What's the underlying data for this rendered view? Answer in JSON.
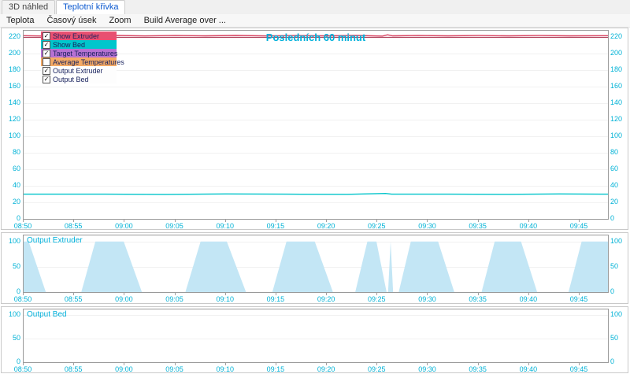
{
  "tabs": [
    {
      "label": "3D náhled",
      "active": false
    },
    {
      "label": "Teplotní křivka",
      "active": true
    }
  ],
  "menu": [
    "Teplota",
    "Časový úsek",
    "Zoom",
    "Build Average over ..."
  ],
  "legend": {
    "items": [
      {
        "label": "Show Extruder",
        "checked": true,
        "bg": "#e85071"
      },
      {
        "label": "Show Bed",
        "checked": true,
        "bg": "#00c6cc"
      },
      {
        "label": "Target Temperatures",
        "checked": true,
        "bg": "#b671d2"
      },
      {
        "label": "Average Temperatures",
        "checked": false,
        "bg": "#f4aa66"
      },
      {
        "label": "Output Extruder",
        "checked": true,
        "bg": "#fdfdfd"
      },
      {
        "label": "Output Bed",
        "checked": true,
        "bg": "#fdfdfd"
      }
    ]
  },
  "colors": {
    "axis_label": "#00b2d6",
    "title": "#00b0da",
    "extruder_line": "#d84563",
    "target_line": "#a62c48",
    "bed_line": "#00c4ca",
    "output_fill": "#c3e6f5",
    "active_tab_text": "#0a58cf"
  },
  "chart_data": [
    {
      "id": "main",
      "type": "line",
      "title": "Posledních 60 minut",
      "x_tick_labels": [
        "08:50",
        "08:55",
        "09:00",
        "09:05",
        "09:10",
        "09:15",
        "09:20",
        "09:25",
        "09:30",
        "09:35",
        "09:40",
        "09:45"
      ],
      "x_tick_minutes": [
        0,
        5,
        10,
        15,
        20,
        25,
        30,
        35,
        40,
        45,
        50,
        55
      ],
      "x_range": [
        0,
        57.8
      ],
      "y_ticks": [
        0,
        20,
        40,
        60,
        80,
        100,
        120,
        140,
        160,
        180,
        200,
        220
      ],
      "y_range": [
        0,
        228
      ],
      "series": [
        {
          "name": "Target Temperatures",
          "color": "#a62c48",
          "width": 1,
          "points": [
            [
              0,
              220
            ],
            [
              57.8,
              220
            ]
          ]
        },
        {
          "name": "Extruder",
          "color": "#d84563",
          "width": 1.4,
          "points": [
            [
              0,
              222
            ],
            [
              2,
              221.6
            ],
            [
              4,
              222.4
            ],
            [
              6,
              221.8
            ],
            [
              9,
              222.3
            ],
            [
              12,
              221.7
            ],
            [
              15,
              222.2
            ],
            [
              18,
              221.8
            ],
            [
              21,
              222.3
            ],
            [
              24,
              221.7
            ],
            [
              27,
              222.2
            ],
            [
              30,
              221.8
            ],
            [
              33,
              222.3
            ],
            [
              35.5,
              221.5
            ],
            [
              36,
              223
            ],
            [
              36.5,
              221.8
            ],
            [
              39,
              222.2
            ],
            [
              42,
              221.8
            ],
            [
              45,
              222.2
            ],
            [
              48,
              221.8
            ],
            [
              51,
              222.2
            ],
            [
              54,
              221.8
            ],
            [
              57.8,
              222
            ]
          ]
        },
        {
          "name": "Bed",
          "color": "#00c4ca",
          "width": 1.4,
          "points": [
            [
              0,
              30
            ],
            [
              8,
              30
            ],
            [
              14,
              29.7
            ],
            [
              20,
              30.2
            ],
            [
              26,
              30
            ],
            [
              32,
              29.8
            ],
            [
              35.8,
              30.8
            ],
            [
              36.4,
              30
            ],
            [
              42,
              30
            ],
            [
              48,
              29.8
            ],
            [
              53,
              30.2
            ],
            [
              57.8,
              30
            ]
          ]
        }
      ]
    },
    {
      "id": "out_extruder",
      "type": "area",
      "title": "Output Extruder",
      "x_tick_labels": [
        "08:50",
        "08:55",
        "09:00",
        "09:05",
        "09:10",
        "09:15",
        "09:20",
        "09:25",
        "09:30",
        "09:35",
        "09:40",
        "09:45"
      ],
      "x_tick_minutes": [
        0,
        5,
        10,
        15,
        20,
        25,
        30,
        35,
        40,
        45,
        50,
        55
      ],
      "x_range": [
        0,
        57.8
      ],
      "y_ticks": [
        0,
        50,
        100
      ],
      "y_range": [
        0,
        112
      ],
      "series": [
        {
          "name": "Output Extruder %",
          "fill": "#c3e6f5",
          "points": [
            [
              0,
              100
            ],
            [
              0.5,
              100
            ],
            [
              2.2,
              0
            ],
            [
              5.7,
              0
            ],
            [
              7.1,
              100
            ],
            [
              9.9,
              100
            ],
            [
              11.7,
              0
            ],
            [
              16,
              0
            ],
            [
              17.5,
              100
            ],
            [
              20.1,
              100
            ],
            [
              22,
              0
            ],
            [
              24.6,
              0
            ],
            [
              26,
              100
            ],
            [
              28.8,
              100
            ],
            [
              30.6,
              0
            ],
            [
              32.8,
              0
            ],
            [
              34,
              100
            ],
            [
              34.9,
              100
            ],
            [
              35.9,
              0
            ],
            [
              36.05,
              0
            ],
            [
              36.3,
              100
            ],
            [
              36.55,
              0
            ],
            [
              37.1,
              0
            ],
            [
              38.3,
              100
            ],
            [
              41,
              100
            ],
            [
              42.6,
              0
            ],
            [
              45.3,
              0
            ],
            [
              46.6,
              100
            ],
            [
              49.2,
              100
            ],
            [
              50.8,
              0
            ],
            [
              53.9,
              0
            ],
            [
              55.2,
              100
            ],
            [
              57.8,
              100
            ]
          ]
        }
      ]
    },
    {
      "id": "out_bed",
      "type": "area",
      "title": "Output Bed",
      "x_tick_labels": [
        "08:50",
        "08:55",
        "09:00",
        "09:05",
        "09:10",
        "09:15",
        "09:20",
        "09:25",
        "09:30",
        "09:35",
        "09:40",
        "09:45"
      ],
      "x_tick_minutes": [
        0,
        5,
        10,
        15,
        20,
        25,
        30,
        35,
        40,
        45,
        50,
        55
      ],
      "x_range": [
        0,
        57.8
      ],
      "y_ticks": [
        0,
        50,
        100
      ],
      "y_range": [
        0,
        112
      ],
      "series": [
        {
          "name": "Output Bed %",
          "fill": "#c3e6f5",
          "points": [
            [
              0,
              0
            ],
            [
              57.8,
              0
            ]
          ]
        }
      ]
    }
  ]
}
